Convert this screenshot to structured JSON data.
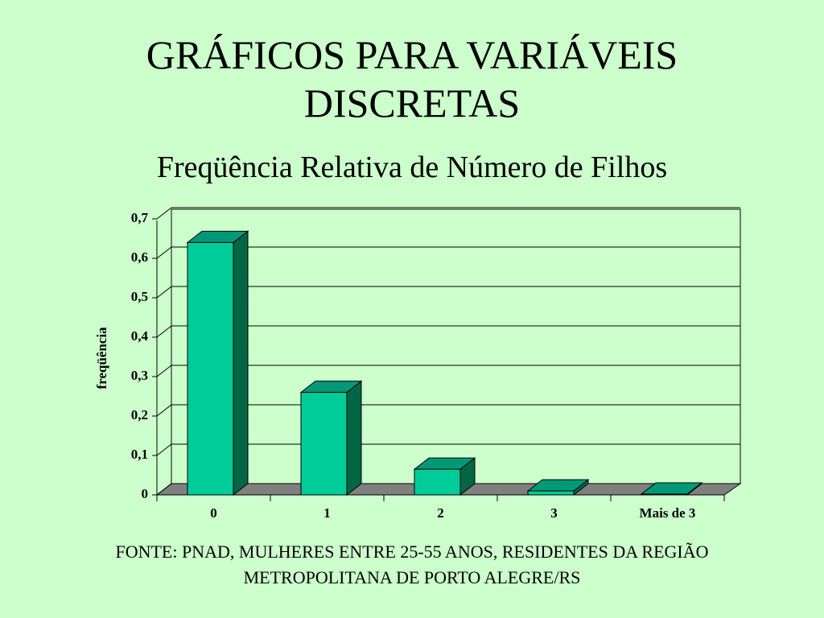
{
  "chart_data": {
    "type": "bar3d",
    "title": "GRÁFICOS PARA VARIÁVEIS DISCRETAS",
    "subtitle": "Freqüência Relativa de Número de Filhos",
    "y_label": "freqüência",
    "categories": [
      "0",
      "1",
      "2",
      "3",
      "Mais de 3"
    ],
    "values": [
      0.64,
      0.26,
      0.065,
      0.01,
      0.002
    ],
    "color": "#00cc99",
    "ylim": [
      0,
      0.7
    ],
    "yticks": [
      0,
      {
        "value": 0.1,
        "label": "0,1"
      },
      {
        "value": 0.2,
        "label": "0,2"
      },
      {
        "value": 0.3,
        "label": "0,3"
      },
      {
        "value": 0.4,
        "label": "0,4"
      },
      {
        "value": 0.5,
        "label": "0,5"
      },
      {
        "value": 0.6,
        "label": "0,6"
      },
      {
        "value": 0.7,
        "label": "0,7"
      }
    ],
    "grid": true,
    "source": "FONTE: PNAD, MULHERES ENTRE 25-55 ANOS, RESIDENTES DA REGIÃO METROPOLITANA DE PORTO ALEGRE/RS"
  }
}
